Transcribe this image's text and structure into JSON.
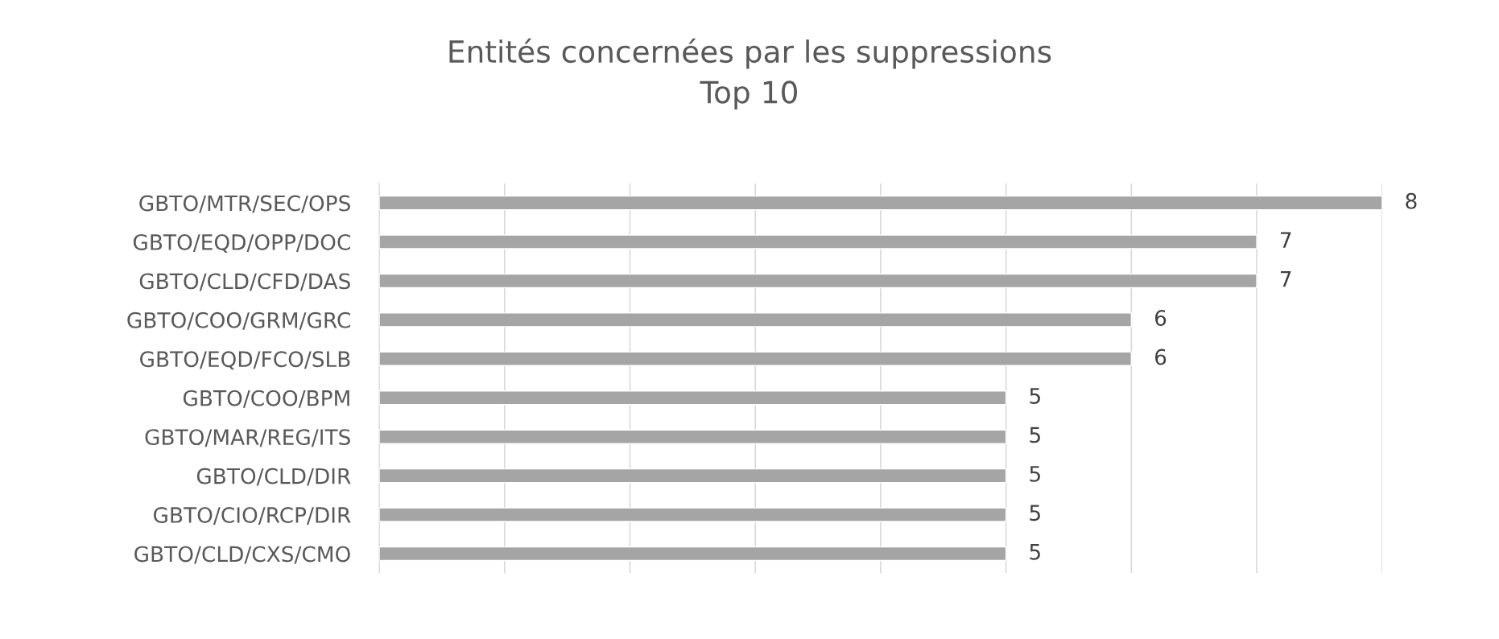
{
  "chart_data": {
    "type": "bar",
    "orientation": "horizontal",
    "title": "Entités concernées par les suppressions\nTop 10",
    "categories": [
      "GBTO/MTR/SEC/OPS",
      "GBTO/EQD/OPP/DOC",
      "GBTO/CLD/CFD/DAS",
      "GBTO/COO/GRM/GRC",
      "GBTO/EQD/FCO/SLB",
      "GBTO/COO/BPM",
      "GBTO/MAR/REG/ITS",
      "GBTO/CLD/DIR",
      "GBTO/CIO/RCP/DIR",
      "GBTO/CLD/CXS/CMO"
    ],
    "values": [
      8,
      7,
      7,
      6,
      6,
      5,
      5,
      5,
      5,
      5
    ],
    "color": "#a5a5a5",
    "xlim": [
      0,
      8
    ],
    "xticks": [
      {
        "value": 0,
        "label": null
      },
      {
        "value": 1,
        "label": null
      },
      {
        "value": 2,
        "label": null
      },
      {
        "value": 3,
        "label": null
      },
      {
        "value": 4,
        "label": null
      },
      {
        "value": 5,
        "label": null
      },
      {
        "value": 6,
        "label": null
      },
      {
        "value": 7,
        "label": null
      },
      {
        "value": 8,
        "label": null
      }
    ],
    "tick_labels": "y",
    "grid": "x",
    "data_labels": true
  }
}
